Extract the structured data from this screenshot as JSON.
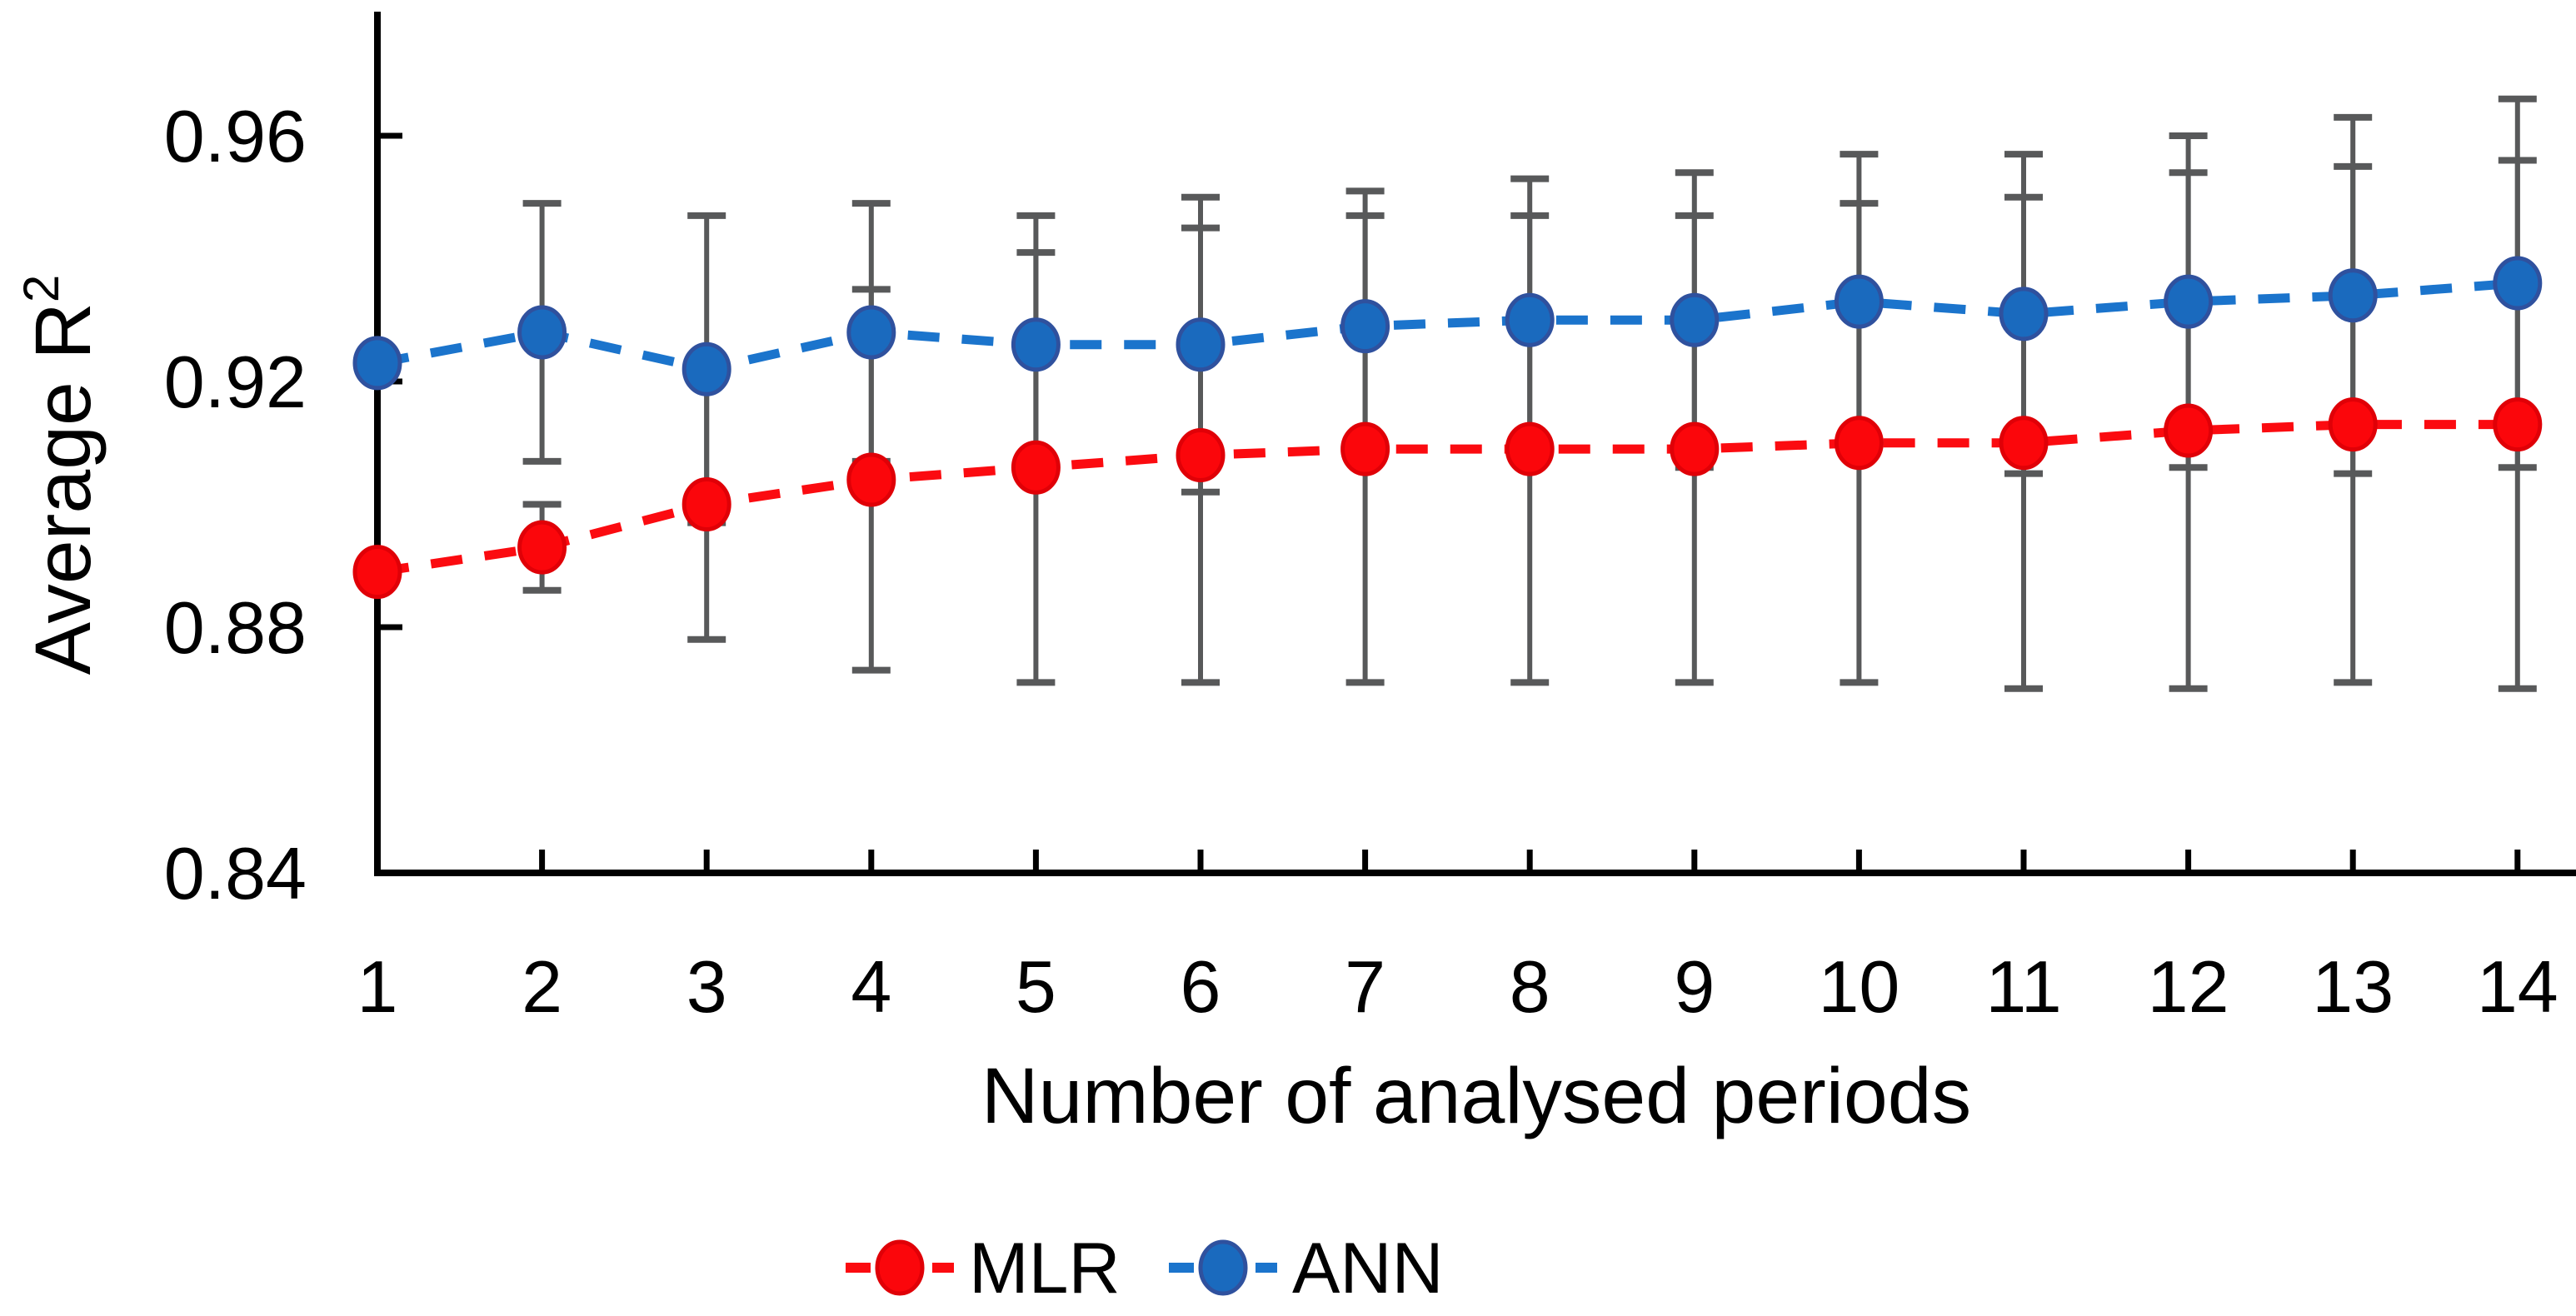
{
  "chart_data": {
    "type": "line",
    "title": "",
    "xlabel": "Number of analysed periods",
    "ylabel_text": "Average R",
    "ylabel_superscript": "2",
    "x_categories": [
      "1",
      "2",
      "3",
      "4",
      "5",
      "6",
      "7",
      "8",
      "9",
      "10",
      "11",
      "12",
      "13",
      "14"
    ],
    "y_axis": {
      "min": 0.84,
      "max": 0.978,
      "tick_values": [
        0.96,
        0.92,
        0.88,
        0.84
      ],
      "tick_labels": [
        "0.96",
        "0.92",
        "0.88",
        "0.84"
      ],
      "grid": false
    },
    "series": [
      {
        "name": "MLR",
        "line_color": "#FB0B10",
        "marker_fill": "#FB060B",
        "marker_stroke": "#E00007",
        "values": [
          0.889,
          0.893,
          0.9,
          0.904,
          0.906,
          0.908,
          0.909,
          0.909,
          0.909,
          0.91,
          0.91,
          0.912,
          0.913,
          0.913
        ],
        "errors": [
          null,
          0.007,
          0.022,
          0.031,
          0.035,
          0.037,
          0.038,
          0.038,
          0.038,
          0.039,
          0.04,
          0.042,
          0.042,
          0.043
        ]
      },
      {
        "name": "ANN",
        "line_color": "#1B74CC",
        "marker_fill": "#1A6ABE",
        "marker_stroke": "#2F519E",
        "values": [
          0.923,
          0.928,
          0.922,
          0.928,
          0.926,
          0.926,
          0.929,
          0.93,
          0.93,
          0.933,
          0.931,
          0.933,
          0.934,
          0.936
        ],
        "errors": [
          null,
          0.021,
          0.025,
          0.021,
          0.021,
          0.024,
          0.022,
          0.023,
          0.024,
          0.024,
          0.026,
          0.027,
          0.029,
          0.03
        ]
      }
    ],
    "error_bar_color": "#58595A",
    "axis_color": "#000000",
    "legend": {
      "position": "bottom",
      "entries": [
        "MLR",
        "ANN"
      ]
    }
  }
}
